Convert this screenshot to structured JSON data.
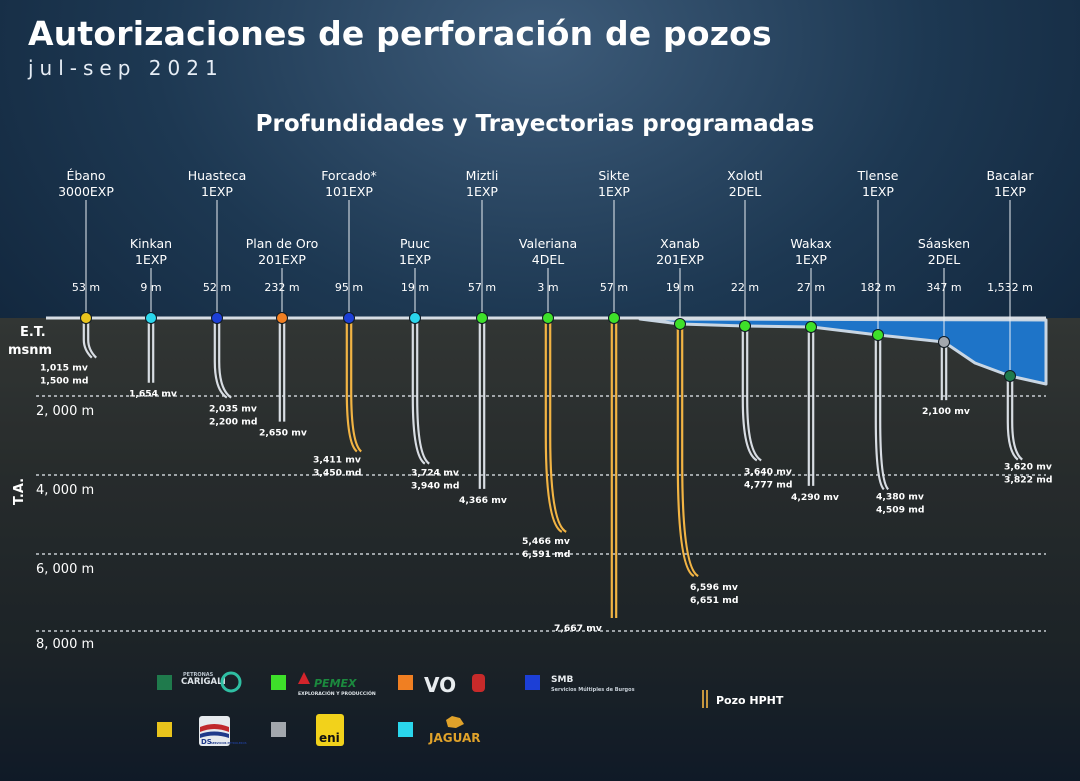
{
  "header": {
    "title": "Autorizaciones de perforación de pozos",
    "subtitle": "jul-sep 2021",
    "section_title": "Profundidades y Trayectorias programadas"
  },
  "axis": {
    "left_label_line1": "E.T.",
    "left_label_line2": "msnm",
    "vertical_label": "T.A.",
    "ticks": [
      {
        "label": "2, 000 m",
        "value": 2000
      },
      {
        "label": "4, 000 m",
        "value": 4000
      },
      {
        "label": "6, 000 m",
        "value": 6000
      },
      {
        "label": "8, 000 m",
        "value": 8000
      }
    ]
  },
  "operator_colors": {
    "carigali": "#1f7a4c",
    "pemex": "#3ee02a",
    "vo": "#f07f22",
    "smb": "#1c3fd6",
    "ds": "#e9c41c",
    "eni": "#a2a7ad",
    "jaguar": "#2ad6ec"
  },
  "hpht_color": "#f2b444",
  "normal_color": "#d8dde3",
  "wells": [
    {
      "name": "Ébano",
      "code": "3000EXP",
      "elev": "53 m",
      "operator": "ds",
      "hpht": false,
      "tv": 1015,
      "md": 1500,
      "depth_text_1": "1,015 mv",
      "depth_text_2": "1,500 md"
    },
    {
      "name": "Kinkan",
      "code": "1EXP",
      "elev": "9 m",
      "operator": "jaguar",
      "hpht": false,
      "tv": 1654,
      "md": 1654,
      "depth_text_1": "1,654 mv",
      "depth_text_2": ""
    },
    {
      "name": "Huasteca",
      "code": "1EXP",
      "elev": "52 m",
      "operator": "smb",
      "hpht": false,
      "tv": 2035,
      "md": 2200,
      "depth_text_1": "2,035 mv",
      "depth_text_2": "2,200 md"
    },
    {
      "name": "Plan de Oro",
      "code": "201EXP",
      "elev": "232 m",
      "operator": "vo",
      "hpht": false,
      "tv": 2650,
      "md": 2650,
      "depth_text_1": "2,650 mv",
      "depth_text_2": ""
    },
    {
      "name": "Forcado*",
      "code": "101EXP",
      "elev": "95 m",
      "operator": "smb",
      "hpht": true,
      "tv": 3411,
      "md": 3450,
      "depth_text_1": "3,411 mv",
      "depth_text_2": "3,450 md"
    },
    {
      "name": "Puuc",
      "code": "1EXP",
      "elev": "19 m",
      "operator": "jaguar",
      "hpht": false,
      "tv": 3724,
      "md": 3940,
      "depth_text_1": "3,724 mv",
      "depth_text_2": "3,940 md"
    },
    {
      "name": "Miztli",
      "code": "1EXP",
      "elev": "57 m",
      "operator": "pemex",
      "hpht": false,
      "tv": 4366,
      "md": 4366,
      "depth_text_1": "4,366 mv",
      "depth_text_2": ""
    },
    {
      "name": "Valeriana",
      "code": "4DEL",
      "elev": "3 m",
      "operator": "pemex",
      "hpht": true,
      "tv": 5466,
      "md": 6591,
      "depth_text_1": "5,466 mv",
      "depth_text_2": "6,591 md"
    },
    {
      "name": "Sikte",
      "code": "1EXP",
      "elev": "57 m",
      "operator": "pemex",
      "hpht": true,
      "tv": 7667,
      "md": 7667,
      "depth_text_1": "7,667 mv",
      "depth_text_2": ""
    },
    {
      "name": "Xanab",
      "code": "201EXP",
      "elev": "19 m",
      "operator": "pemex",
      "hpht": true,
      "tv": 6596,
      "md": 6651,
      "depth_text_1": "6,596 mv",
      "depth_text_2": "6,651 md"
    },
    {
      "name": "Xolotl",
      "code": "2DEL",
      "elev": "22 m",
      "operator": "pemex",
      "hpht": false,
      "tv": 3640,
      "md": 4777,
      "depth_text_1": "3,640 mv",
      "depth_text_2": "4,777 md"
    },
    {
      "name": "Wakax",
      "code": "1EXP",
      "elev": "27 m",
      "operator": "pemex",
      "hpht": false,
      "tv": 4290,
      "md": 4290,
      "depth_text_1": "4,290 mv",
      "depth_text_2": ""
    },
    {
      "name": "Tlense",
      "code": "1EXP",
      "elev": "182 m",
      "operator": "pemex",
      "hpht": false,
      "tv": 4380,
      "md": 4509,
      "depth_text_1": "4,380 mv",
      "depth_text_2": "4,509 md"
    },
    {
      "name": "Sáasken",
      "code": "2DEL",
      "elev": "347 m",
      "operator": "eni",
      "hpht": false,
      "tv": 2100,
      "md": 2100,
      "depth_text_1": "2,100 mv",
      "depth_text_2": ""
    },
    {
      "name": "Bacalar",
      "code": "1EXP",
      "elev": "1,532 m",
      "operator": "carigali",
      "hpht": false,
      "tv": 3620,
      "md": 3822,
      "depth_text_1": "3,620 mv",
      "depth_text_2": "3,822 md"
    }
  ],
  "legend": {
    "entries": [
      {
        "operator": "carigali",
        "logo_text_1": "PETRONAS",
        "logo_text_2": "CARIGALI"
      },
      {
        "operator": "pemex",
        "logo_text_1": "PEMEX",
        "logo_text_2": "EXPLORACIÓN Y PRODUCCIÓN"
      },
      {
        "operator": "vo",
        "logo_text_1": "VO"
      },
      {
        "operator": "smb",
        "logo_text_1": "SMB",
        "logo_text_2": "Servicios Múltiples de Burgos"
      },
      {
        "operator": "ds",
        "logo_text_1": "DS",
        "logo_text_2": "SERVICIOS PETROLEROS"
      },
      {
        "operator": "eni",
        "logo_text_1": "eni"
      },
      {
        "operator": "jaguar",
        "logo_text_1": "JAGUAR"
      }
    ],
    "hpht_label": "Pozo HPHT"
  }
}
